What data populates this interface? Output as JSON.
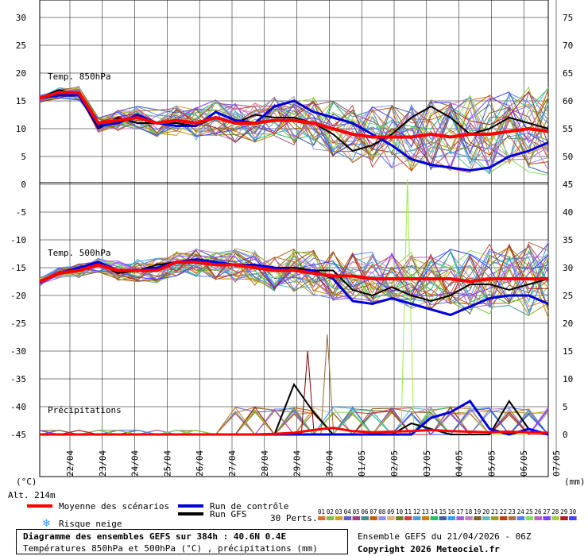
{
  "chart_data": {
    "type": "line",
    "source_title": "Diagramme des ensembles GEFS sur 384h : 40.6N 0.4E",
    "subtitle": "Températures 850hPa et 500hPa (°C) , précipitations (mm)",
    "run_info": "Ensemble GEFS du 21/04/2026 - 06Z",
    "copyright": "Copyright 2026 Meteociel.fr",
    "altitude": "Alt. 214m",
    "left_unit": "(°C)",
    "right_unit": "(mm)",
    "panel_labels": {
      "t850": "Temp. 850hPa",
      "t500": "Temp. 500hPa",
      "precip": "Précipitations"
    },
    "x_dates": [
      "22/04",
      "23/04",
      "24/04",
      "25/04",
      "26/04",
      "27/04",
      "28/04",
      "29/04",
      "30/04",
      "01/05",
      "02/05",
      "03/05",
      "04/05",
      "05/05",
      "06/05",
      "07/05"
    ],
    "left_ticks": [
      30,
      25,
      20,
      15,
      10,
      5,
      0,
      -5,
      -10,
      -15,
      -20,
      -25,
      -30,
      -35,
      -40,
      -45
    ],
    "right_ticks": [
      75,
      70,
      65,
      60,
      55,
      50,
      45,
      40,
      35,
      30,
      25,
      20,
      15,
      10,
      5,
      0
    ],
    "legend": {
      "mean": "Moyenne des scénarios",
      "control": "Run de contrôle",
      "gfs": "Run GFS",
      "snow": "Risque neige",
      "perts": "30 Perts."
    },
    "colors": {
      "mean": "#ff0000",
      "control": "#0000dd",
      "gfs": "#000000",
      "snow": "#3399ff",
      "members": [
        "#e07030",
        "#80c040",
        "#d0a020",
        "#6060d0",
        "#a04080",
        "#409090",
        "#c06000",
        "#9090f0",
        "#e0b080",
        "#708020",
        "#d04040",
        "#40a0e0",
        "#d08000",
        "#20c060",
        "#4060a0",
        "#30a0ff",
        "#a060e0",
        "#c080c0",
        "#806020",
        "#60c0c0",
        "#a0a020",
        "#c04000",
        "#b07040",
        "#5080ff",
        "#80e060",
        "#c060c0",
        "#8040ff",
        "#a0d040",
        "#b02020",
        "#4040ff"
      ]
    },
    "member_ids": [
      "01",
      "02",
      "03",
      "04",
      "05",
      "06",
      "07",
      "08",
      "09",
      "10",
      "11",
      "12",
      "13",
      "14",
      "15",
      "16",
      "17",
      "18",
      "19",
      "20",
      "21",
      "22",
      "23",
      "24",
      "25",
      "26",
      "27",
      "28",
      "29",
      "30"
    ],
    "t850": {
      "mean": [
        15.5,
        16.5,
        16.5,
        11,
        11.5,
        12,
        11,
        11.5,
        11,
        12,
        11,
        11,
        11.5,
        11.5,
        11,
        10,
        9,
        8.5,
        8.5,
        8.5,
        9,
        8.5,
        9,
        9,
        9.5,
        10,
        9.5
      ],
      "control": [
        15.5,
        16,
        16,
        10.5,
        11,
        12.5,
        11,
        10.5,
        10.5,
        13,
        11.5,
        11,
        14,
        15,
        13,
        12,
        11,
        9,
        7,
        4.5,
        3.5,
        3,
        2.5,
        3,
        5,
        6,
        7.5
      ],
      "gfs": [
        15.5,
        17,
        16,
        10,
        12,
        11,
        11,
        11,
        10.5,
        12,
        11,
        12.5,
        12,
        12,
        11,
        9,
        6,
        7,
        9,
        12,
        14,
        12,
        9,
        10,
        12,
        11,
        10
      ]
    },
    "t500": {
      "mean": [
        -17.5,
        -16,
        -15.5,
        -14.5,
        -15.5,
        -15.5,
        -15.5,
        -14,
        -14,
        -14.5,
        -14.5,
        -15,
        -15.5,
        -15.5,
        -16,
        -16.5,
        -16.5,
        -17,
        -17,
        -17,
        -17,
        -17,
        -17.5,
        -17,
        -17,
        -17,
        -17
      ],
      "control": [
        -17.5,
        -16,
        -15,
        -14,
        -15.5,
        -15.5,
        -15,
        -14,
        -13.5,
        -14,
        -14.5,
        -14.5,
        -15,
        -15.5,
        -15.5,
        -17,
        -21,
        -21.5,
        -20.5,
        -21.5,
        -22.5,
        -23.5,
        -22,
        -20.5,
        -20,
        -20,
        -21.5
      ],
      "gfs": [
        -17.5,
        -16,
        -15,
        -14,
        -16,
        -15.5,
        -14.5,
        -14,
        -13.5,
        -14.5,
        -14.5,
        -15,
        -15,
        -15,
        -15.5,
        -15.5,
        -19,
        -20,
        -18.5,
        -20,
        -21,
        -20,
        -18,
        -18,
        -19,
        -18,
        -17
      ]
    },
    "precip_mean_mm": [
      0,
      0,
      0,
      0,
      0,
      0,
      0,
      0,
      0,
      0,
      0,
      0,
      0.1,
      0.3,
      0.8,
      1.2,
      0.6,
      0.4,
      0.5,
      0.6,
      0.8,
      0.6,
      0.5,
      0.4,
      0.5,
      0.4,
      0.3
    ],
    "precip_control_mm": [
      0,
      0,
      0,
      0,
      0,
      0,
      0,
      0,
      0,
      0,
      0,
      0,
      0,
      0,
      0,
      0,
      0,
      0,
      0,
      0,
      3,
      4,
      6,
      1,
      0,
      1,
      0
    ],
    "precip_gfs_mm": [
      0,
      0,
      0,
      0,
      0,
      0,
      0,
      0,
      0,
      0,
      0,
      0,
      0,
      9,
      4,
      0,
      0,
      0,
      0,
      2,
      1,
      0,
      0,
      0,
      6,
      1,
      0
    ],
    "precip_peaks_mm": [
      {
        "date": "30/04",
        "value": 15
      },
      {
        "date": "01/05",
        "value": 18
      },
      {
        "date": "04/05",
        "value": 46
      }
    ]
  }
}
